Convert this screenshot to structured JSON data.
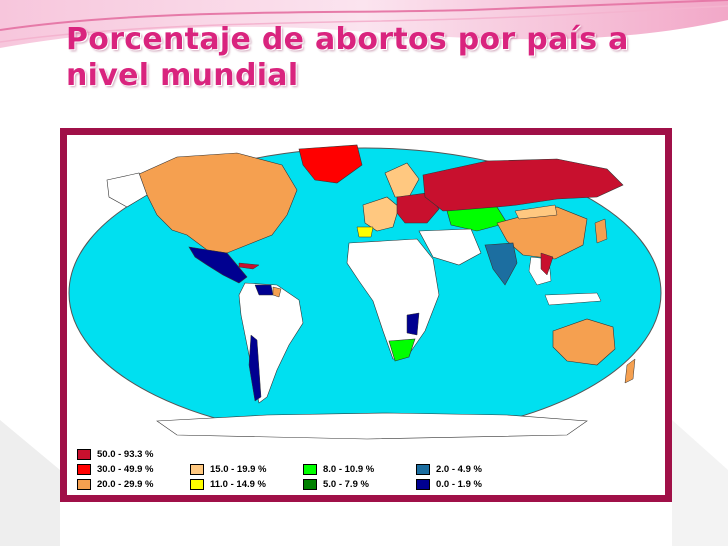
{
  "slide": {
    "title_line1": "Porcentaje de abortos por país a",
    "title_line2": "nivel mundial"
  },
  "map": {
    "ocean_color": "#00e0f0",
    "land_default_color": "#ffffff"
  },
  "legend": [
    {
      "label": "50.0 - 93.3 %",
      "color": "#c8102e"
    },
    {
      "label": "30.0 - 49.9 %",
      "color": "#ff0000"
    },
    {
      "label": "20.0 - 29.9 %",
      "color": "#f5a050"
    },
    {
      "label": "15.0 - 19.9 %",
      "color": "#ffc880"
    },
    {
      "label": "11.0 - 14.9 %",
      "color": "#ffff00"
    },
    {
      "label": "8.0 - 10.9 %",
      "color": "#00ff00"
    },
    {
      "label": "5.0 - 7.9 %",
      "color": "#008000"
    },
    {
      "label": "2.0 - 4.9 %",
      "color": "#1c6ea0"
    },
    {
      "label": "0.0 - 1.9 %",
      "color": "#000090"
    }
  ]
}
